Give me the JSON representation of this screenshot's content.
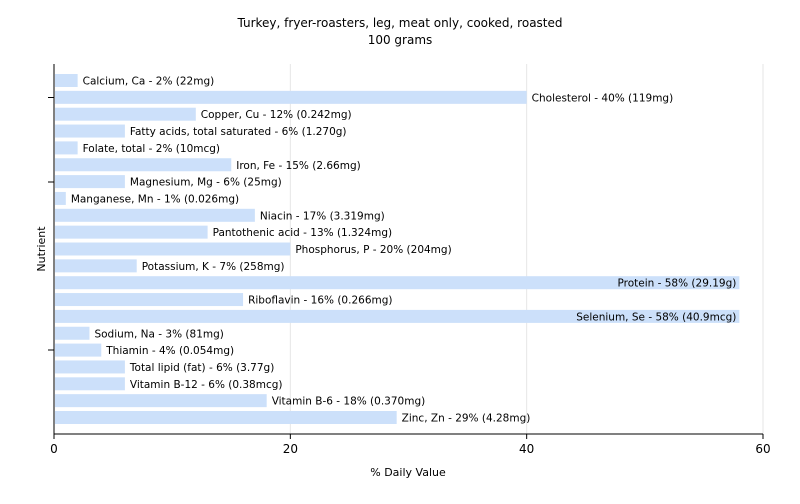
{
  "chart_data": {
    "type": "bar",
    "orientation": "horizontal",
    "title": "Turkey, fryer-roasters, leg, meat only, cooked, roasted",
    "subtitle": "100 grams",
    "xlabel": "% Daily Value",
    "ylabel": "Nutrient",
    "xlim": [
      0,
      60
    ],
    "xticks": [
      "0",
      "20",
      "40",
      "60"
    ],
    "grid": true,
    "bar_color": "#cce0fa",
    "categories": [
      "Calcium, Ca",
      "Cholesterol",
      "Copper, Cu",
      "Fatty acids, total saturated",
      "Folate, total",
      "Iron, Fe",
      "Magnesium, Mg",
      "Manganese, Mn",
      "Niacin",
      "Pantothenic acid",
      "Phosphorus, P",
      "Potassium, K",
      "Protein",
      "Riboflavin",
      "Selenium, Se",
      "Sodium, Na",
      "Thiamin",
      "Total lipid (fat)",
      "Vitamin B-12",
      "Vitamin B-6",
      "Zinc, Zn"
    ],
    "values": [
      2,
      40,
      12,
      6,
      2,
      15,
      6,
      1,
      17,
      13,
      20,
      7,
      58,
      16,
      58,
      3,
      4,
      6,
      6,
      18,
      29
    ],
    "labels": [
      "Calcium, Ca - 2% (22mg)",
      "Cholesterol - 40% (119mg)",
      "Copper, Cu - 12% (0.242mg)",
      "Fatty acids, total saturated - 6% (1.270g)",
      "Folate, total - 2% (10mcg)",
      "Iron, Fe - 15% (2.66mg)",
      "Magnesium, Mg - 6% (25mg)",
      "Manganese, Mn - 1% (0.026mg)",
      "Niacin - 17% (3.319mg)",
      "Pantothenic acid - 13% (1.324mg)",
      "Phosphorus, P - 20% (204mg)",
      "Potassium, K - 7% (258mg)",
      "Protein - 58% (29.19g)",
      "Riboflavin - 16% (0.266mg)",
      "Selenium, Se - 58% (40.9mcg)",
      "Sodium, Na - 3% (81mg)",
      "Thiamin - 4% (0.054mg)",
      "Total lipid (fat) - 6% (3.77g)",
      "Vitamin B-12 - 6% (0.38mcg)",
      "Vitamin B-6 - 18% (0.370mg)",
      "Zinc, Zn - 29% (4.28mg)"
    ]
  }
}
